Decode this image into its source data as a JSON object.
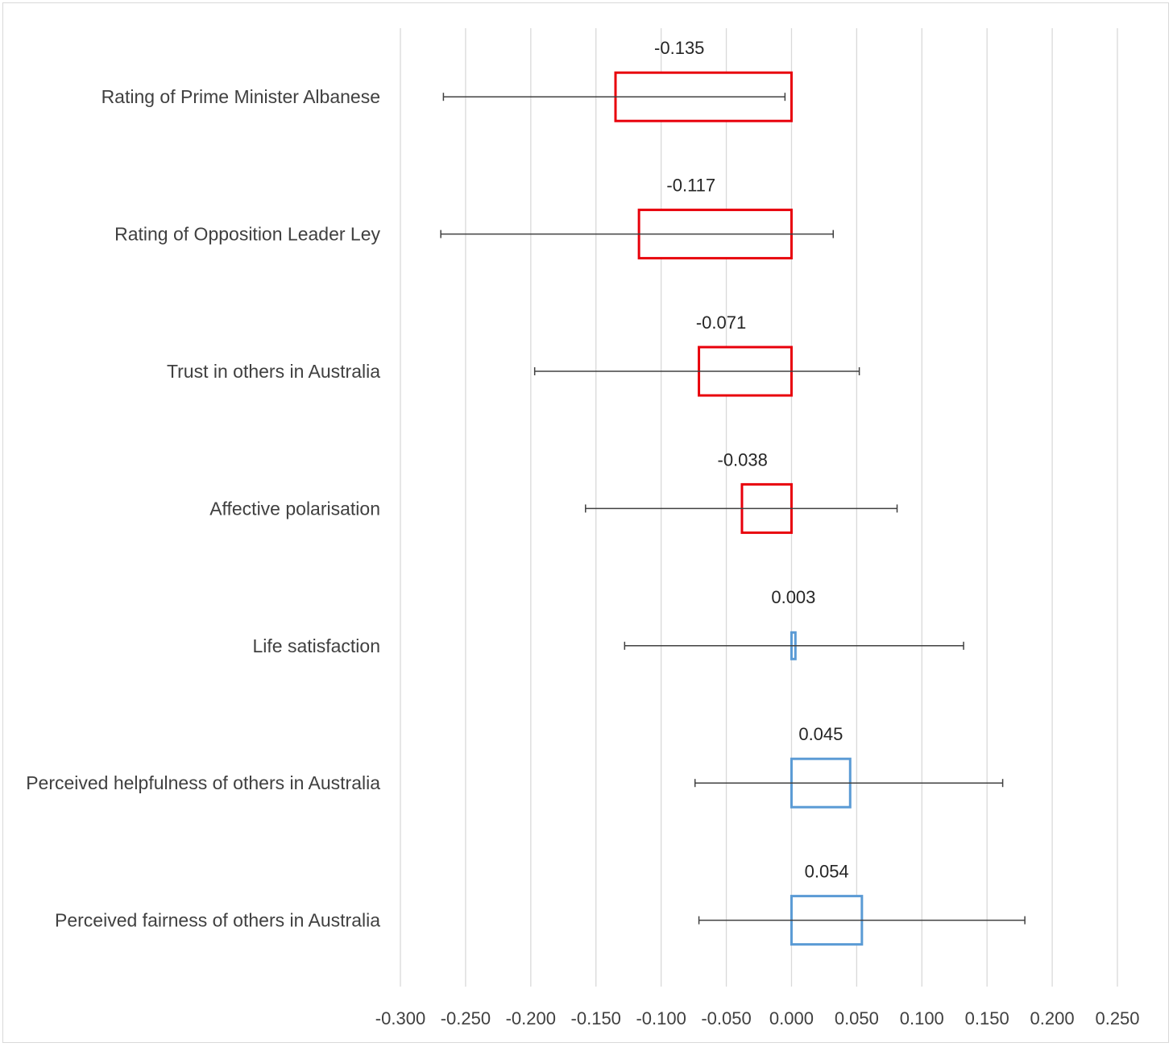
{
  "chart_data": {
    "type": "bar",
    "orientation": "horizontal",
    "title": "",
    "xlabel": "",
    "ylabel": "",
    "xlim": [
      -0.3,
      0.25
    ],
    "x_ticks": [
      -0.3,
      -0.25,
      -0.2,
      -0.15,
      -0.1,
      -0.05,
      0.0,
      0.05,
      0.1,
      0.15,
      0.2,
      0.25
    ],
    "x_tick_labels": [
      "-0.300",
      "-0.250",
      "-0.200",
      "-0.150",
      "-0.100",
      "-0.050",
      "0.000",
      "0.050",
      "0.100",
      "0.150",
      "0.200",
      "0.250"
    ],
    "grid": "vertical",
    "categories": [
      "Rating of Prime Minister Albanese",
      "Rating of Opposition Leader Ley",
      "Trust in others in Australia",
      "Affective polarisation",
      "Life satisfaction",
      "Perceived helpfulness of others in Australia",
      "Perceived fairness of others in Australia"
    ],
    "values": [
      -0.135,
      -0.117,
      -0.071,
      -0.038,
      0.003,
      0.045,
      0.054
    ],
    "value_labels": [
      "-0.135",
      "-0.117",
      "-0.071",
      "-0.038",
      "0.003",
      "0.045",
      "0.054"
    ],
    "ci_low": [
      -0.267,
      -0.269,
      -0.197,
      -0.158,
      -0.128,
      -0.074,
      -0.071
    ],
    "ci_high": [
      -0.005,
      0.032,
      0.052,
      0.081,
      0.132,
      0.162,
      0.179
    ],
    "colors": {
      "negative": "#e8000b",
      "positive": "#5b9bd5",
      "error_bar": "#404040",
      "grid": "#d9d9d9"
    }
  }
}
